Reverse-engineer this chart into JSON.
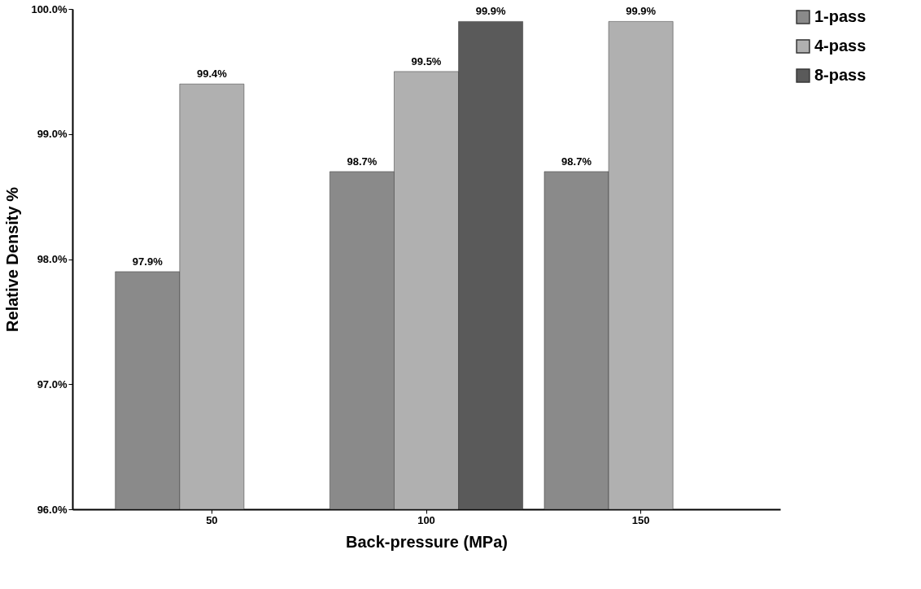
{
  "chart_data": {
    "type": "bar",
    "xlabel": "Back-pressure  (MPa)",
    "ylabel": "Relative Density %",
    "categories": [
      "50",
      "100",
      "150"
    ],
    "series": [
      {
        "name": "1-pass",
        "color": "#8a8a8a",
        "values": [
          97.9,
          98.7,
          98.7
        ],
        "value_labels": [
          "97.9%",
          "98.7%",
          "98.7%"
        ]
      },
      {
        "name": "4-pass",
        "color": "#b0b0b0",
        "values": [
          99.4,
          99.5,
          99.9
        ],
        "value_labels": [
          "99.4%",
          "99.5%",
          "99.9%"
        ]
      },
      {
        "name": "8-pass",
        "color": "#5a5a5a",
        "values": [
          null,
          99.9,
          null
        ],
        "value_labels": [
          null,
          "99.9%",
          null
        ]
      }
    ],
    "ylim": [
      96,
      100
    ],
    "yticks": [
      {
        "value": 96,
        "label": "96.0%"
      },
      {
        "value": 97,
        "label": "97.0%"
      },
      {
        "value": 98,
        "label": "98.0%"
      },
      {
        "value": 99,
        "label": "99.0%"
      },
      {
        "value": 100,
        "label": "100.0%"
      }
    ],
    "grid": false,
    "legend": "top right"
  }
}
